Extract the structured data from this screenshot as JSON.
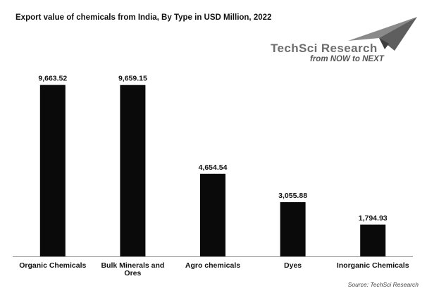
{
  "chart_data": {
    "type": "bar",
    "title": "Export value of chemicals from India, By Type in USD Million, 2022",
    "xlabel": "",
    "ylabel": "",
    "ylim": [
      0,
      10800
    ],
    "grid": false,
    "legend": "none",
    "bar_color": "#0a0a0a",
    "categories": [
      "Organic Chemicals",
      "Bulk Minerals and Ores",
      "Agro chemicals",
      "Dyes",
      "Inorganic Chemicals"
    ],
    "category_lines": [
      [
        "Organic Chemicals"
      ],
      [
        "Bulk Minerals and",
        "Ores"
      ],
      [
        "Agro chemicals"
      ],
      [
        "Dyes"
      ],
      [
        "Inorganic Chemicals"
      ]
    ],
    "values": [
      9663.52,
      9659.15,
      4654.54,
      3055.88,
      1794.93
    ],
    "value_labels": [
      "9,663.52",
      "9,659.15",
      "4,654.54",
      "3,055.88",
      "1,794.93"
    ]
  },
  "logo": {
    "brand": "TechSci Research",
    "tagline": "from NOW to NEXT"
  },
  "source": "Source: TechSci Research",
  "colors": {
    "bars": "#0a0a0a",
    "axis": "#999999",
    "logo_grey": "#6e6e6e"
  }
}
